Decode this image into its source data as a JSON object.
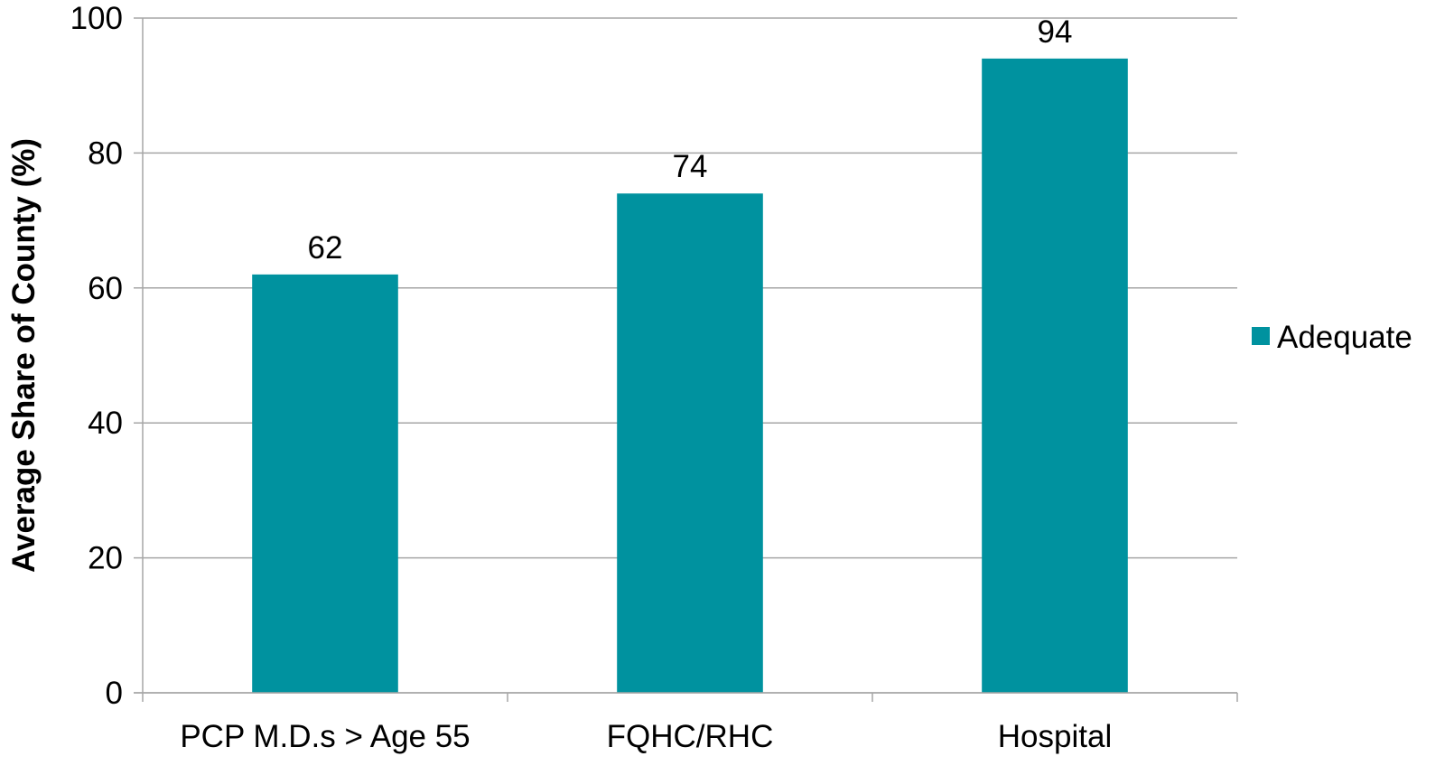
{
  "chart_data": {
    "type": "bar",
    "categories": [
      "PCP M.D.s > Age 55",
      "FQHC/RHC",
      "Hospital"
    ],
    "series": [
      {
        "name": "Adequate",
        "values": [
          62,
          74,
          94
        ],
        "color": "#00929F"
      }
    ],
    "data_labels": [
      "62",
      "74",
      "94"
    ],
    "ylabel": "Average Share of County (%)",
    "xlabel": "",
    "ylim": [
      0,
      100
    ],
    "yticks": [
      0,
      20,
      40,
      60,
      80,
      100
    ],
    "ytick_labels": [
      "0",
      "20",
      "40",
      "60",
      "80",
      "100"
    ],
    "grid": true,
    "legend": {
      "position": "right",
      "entries": [
        "Adequate"
      ]
    },
    "gridline_color": "#A6A6A6"
  }
}
